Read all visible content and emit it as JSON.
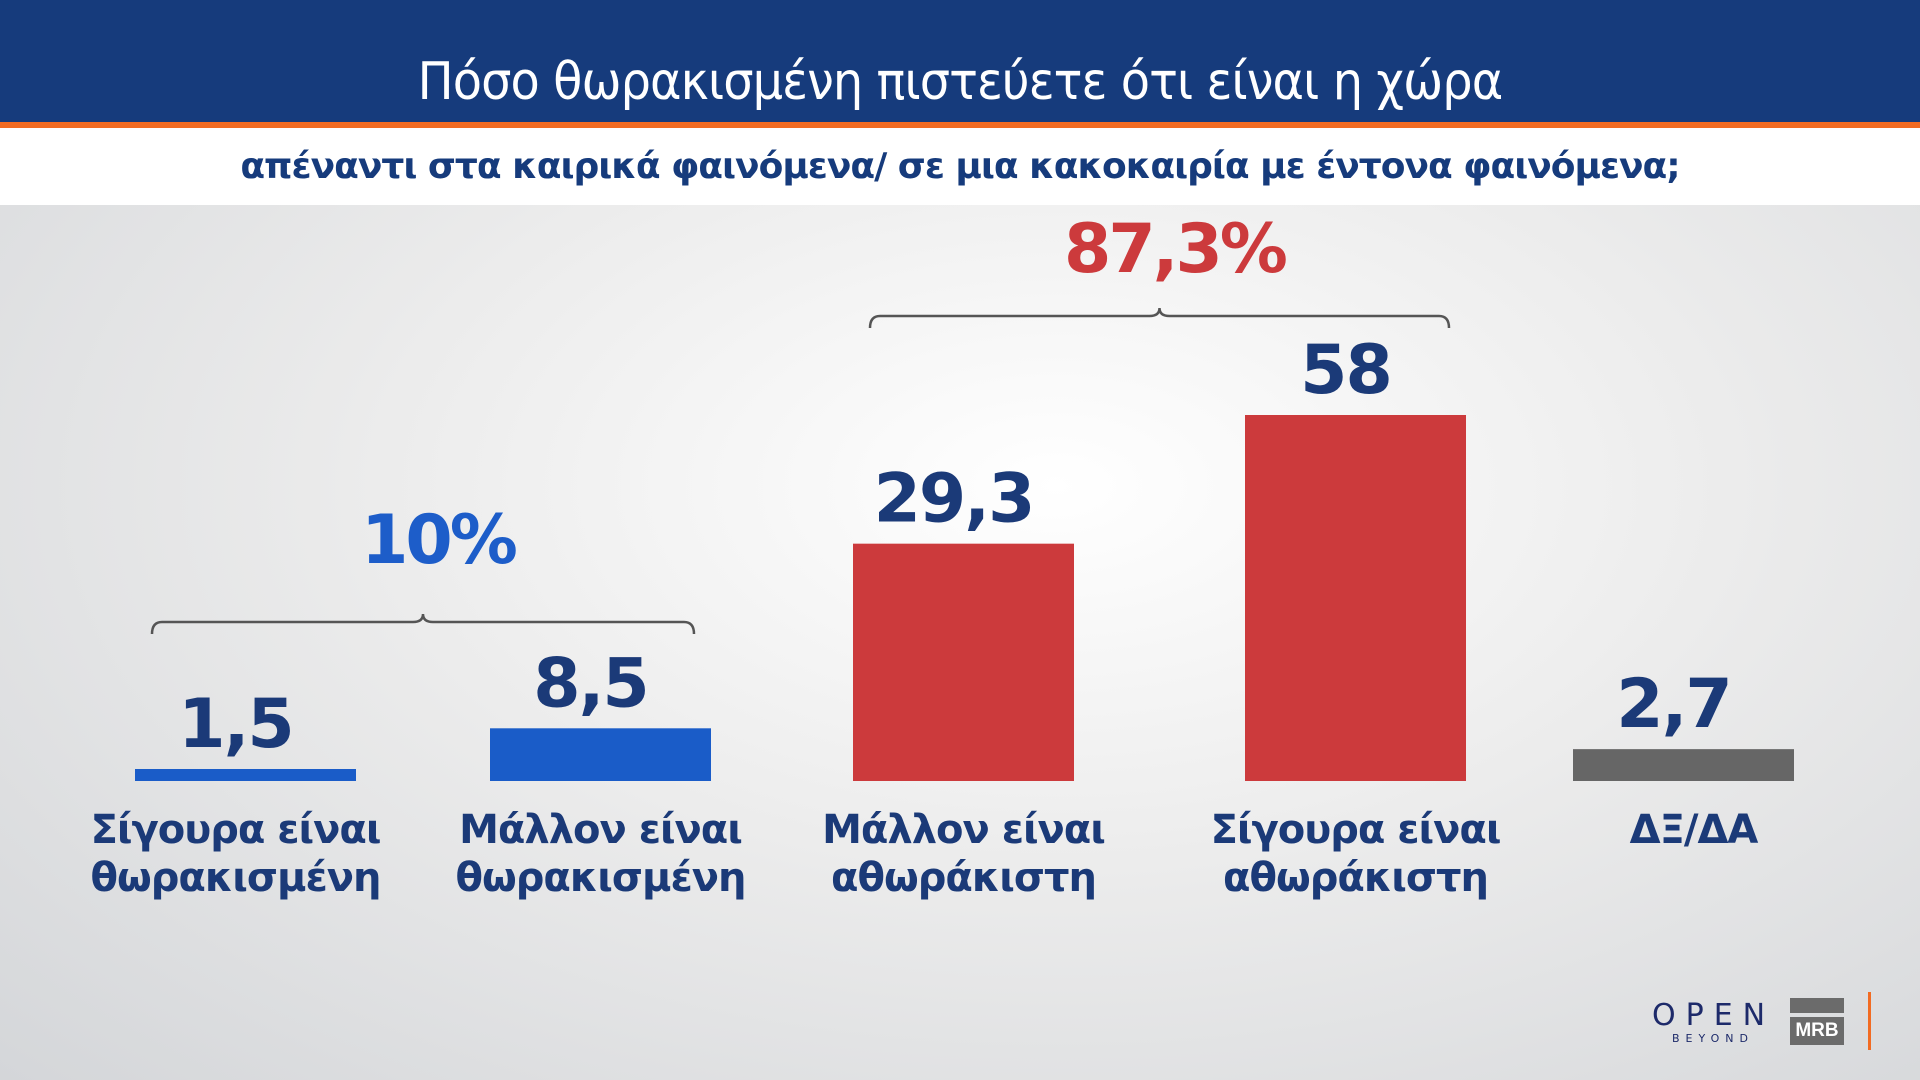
{
  "header": {
    "title": "Πόσο θωρακισμένη πιστεύετε ότι είναι η χώρα",
    "subtitle": "απέναντι στα καιρικά φαινόμενα/ σε μια κακοκαιρία με έντονα φαινόμενα;"
  },
  "chart_data": {
    "type": "bar",
    "title": "Πόσο θωρακισμένη πιστεύετε ότι είναι η χώρα απέναντι στα καιρικά φαινόμενα/ σε μια κακοκαιρία με έντονα φαινόμενα;",
    "categories": [
      [
        "Σίγουρα είναι",
        "θωρακισμένη"
      ],
      [
        "Μάλλον είναι",
        "θωρακισμένη"
      ],
      [
        "Μάλλον είναι",
        "αθωράκιστη"
      ],
      [
        "Σίγουρα είναι",
        "αθωράκιστη"
      ],
      [
        "ΔΞ/ΔΑ"
      ]
    ],
    "values": [
      1.5,
      8.5,
      29.3,
      58,
      2.7
    ],
    "value_labels": [
      "1,5",
      "8,5",
      "29,3",
      "58",
      "2,7"
    ],
    "colors": [
      "#1a5cc8",
      "#1a5cc8",
      "#cc3a3c",
      "#cc3a3c",
      "#666666"
    ],
    "groups": [
      {
        "label": "10%",
        "from": 0,
        "to": 1,
        "color": "#1d5dc9"
      },
      {
        "label": "87,3%",
        "from": 2,
        "to": 3,
        "color": "#cc3a3c"
      }
    ],
    "grid": false,
    "ylim": [
      0,
      60
    ]
  },
  "logos": {
    "open": "OPEN",
    "open_sub": "BEYOND",
    "mrb": "MRB"
  },
  "colors": {
    "header": "#163b7c",
    "accent": "#f26b22",
    "text": "#1b3a78"
  }
}
